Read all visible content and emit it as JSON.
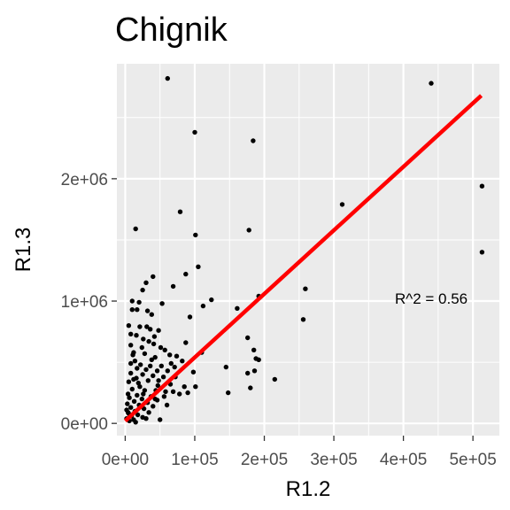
{
  "chart_data": {
    "type": "scatter",
    "title": "Chignik",
    "xlabel": "R1.2",
    "ylabel": "R1.3",
    "xlim": [
      -12000,
      538000
    ],
    "ylim": [
      -100000,
      2940000
    ],
    "x_ticks": [
      0,
      100000,
      200000,
      300000,
      400000,
      500000
    ],
    "x_tick_labels": [
      "0e+00",
      "1e+05",
      "2e+05",
      "3e+05",
      "4e+05",
      "5e+05"
    ],
    "y_ticks": [
      0,
      1000000,
      2000000
    ],
    "y_tick_labels": [
      "0e+00",
      "1e+06",
      "2e+06"
    ],
    "grid": true,
    "background": "#ebebeb",
    "point_color": "#000000",
    "annotation": {
      "text": "R^2 = 0.56",
      "x": 440000,
      "y": 980000
    },
    "fit_line": {
      "color": "#ff0000",
      "x": [
        0,
        512000
      ],
      "y": [
        20000,
        2680000
      ]
    },
    "points": [
      [
        61000,
        2820000
      ],
      [
        100000,
        2380000
      ],
      [
        184000,
        2310000
      ],
      [
        440000,
        2780000
      ],
      [
        513000,
        1940000
      ],
      [
        513000,
        1400000
      ],
      [
        312000,
        1790000
      ],
      [
        79000,
        1730000
      ],
      [
        15000,
        1590000
      ],
      [
        101000,
        1540000
      ],
      [
        178000,
        1580000
      ],
      [
        105000,
        1280000
      ],
      [
        87000,
        1220000
      ],
      [
        40000,
        1200000
      ],
      [
        30000,
        1150000
      ],
      [
        25000,
        1090000
      ],
      [
        259000,
        1100000
      ],
      [
        69000,
        1120000
      ],
      [
        192000,
        1040000
      ],
      [
        124000,
        1010000
      ],
      [
        10000,
        1000000
      ],
      [
        20000,
        990000
      ],
      [
        53000,
        980000
      ],
      [
        112000,
        960000
      ],
      [
        161000,
        940000
      ],
      [
        10000,
        930000
      ],
      [
        17000,
        930000
      ],
      [
        32000,
        920000
      ],
      [
        38000,
        890000
      ],
      [
        93000,
        870000
      ],
      [
        256000,
        850000
      ],
      [
        5000,
        800000
      ],
      [
        21000,
        790000
      ],
      [
        31000,
        790000
      ],
      [
        36000,
        770000
      ],
      [
        48000,
        760000
      ],
      [
        8000,
        730000
      ],
      [
        16000,
        720000
      ],
      [
        42000,
        710000
      ],
      [
        176000,
        700000
      ],
      [
        26000,
        690000
      ],
      [
        34000,
        670000
      ],
      [
        41000,
        650000
      ],
      [
        87000,
        660000
      ],
      [
        8000,
        640000
      ],
      [
        24000,
        620000
      ],
      [
        51000,
        620000
      ],
      [
        57000,
        600000
      ],
      [
        185000,
        600000
      ],
      [
        12000,
        580000
      ],
      [
        28000,
        570000
      ],
      [
        64000,
        560000
      ],
      [
        43000,
        540000
      ],
      [
        74000,
        550000
      ],
      [
        188000,
        530000
      ],
      [
        14000,
        510000
      ],
      [
        192000,
        520000
      ],
      [
        8000,
        490000
      ],
      [
        22000,
        480000
      ],
      [
        36000,
        470000
      ],
      [
        52000,
        470000
      ],
      [
        71000,
        460000
      ],
      [
        145000,
        460000
      ],
      [
        17000,
        450000
      ],
      [
        30000,
        440000
      ],
      [
        46000,
        430000
      ],
      [
        61000,
        430000
      ],
      [
        186000,
        430000
      ],
      [
        8000,
        410000
      ],
      [
        25000,
        400000
      ],
      [
        40000,
        390000
      ],
      [
        55000,
        380000
      ],
      [
        176000,
        410000
      ],
      [
        12000,
        360000
      ],
      [
        33000,
        350000
      ],
      [
        48000,
        350000
      ],
      [
        215000,
        360000
      ],
      [
        5000,
        340000
      ],
      [
        19000,
        330000
      ],
      [
        65000,
        320000
      ],
      [
        101000,
        300000
      ],
      [
        180000,
        290000
      ],
      [
        10000,
        280000
      ],
      [
        28000,
        270000
      ],
      [
        44000,
        270000
      ],
      [
        69000,
        260000
      ],
      [
        90000,
        250000
      ],
      [
        148000,
        250000
      ],
      [
        4000,
        240000
      ],
      [
        17000,
        230000
      ],
      [
        37000,
        220000
      ],
      [
        56000,
        220000
      ],
      [
        6000,
        210000
      ],
      [
        24000,
        200000
      ],
      [
        46000,
        190000
      ],
      [
        13000,
        180000
      ],
      [
        32000,
        170000
      ],
      [
        3000,
        160000
      ],
      [
        20000,
        150000
      ],
      [
        40000,
        140000
      ],
      [
        8000,
        130000
      ],
      [
        27000,
        120000
      ],
      [
        2000,
        110000
      ],
      [
        14000,
        100000
      ],
      [
        34000,
        90000
      ],
      [
        5000,
        80000
      ],
      [
        18000,
        70000
      ],
      [
        9000,
        60000
      ],
      [
        25000,
        50000
      ],
      [
        2000,
        40000
      ],
      [
        12000,
        30000
      ],
      [
        30000,
        40000
      ],
      [
        6000,
        20000
      ],
      [
        15000,
        10000
      ],
      [
        50000,
        30000
      ],
      [
        4000,
        90000
      ],
      [
        21000,
        300000
      ],
      [
        58000,
        260000
      ],
      [
        78000,
        240000
      ],
      [
        98000,
        420000
      ],
      [
        66000,
        490000
      ],
      [
        82000,
        510000
      ],
      [
        110000,
        580000
      ],
      [
        47000,
        310000
      ],
      [
        38000,
        520000
      ],
      [
        72000,
        380000
      ],
      [
        26000,
        240000
      ],
      [
        16000,
        370000
      ],
      [
        60000,
        150000
      ],
      [
        85000,
        300000
      ],
      [
        11000,
        560000
      ],
      [
        43000,
        200000
      ]
    ]
  }
}
